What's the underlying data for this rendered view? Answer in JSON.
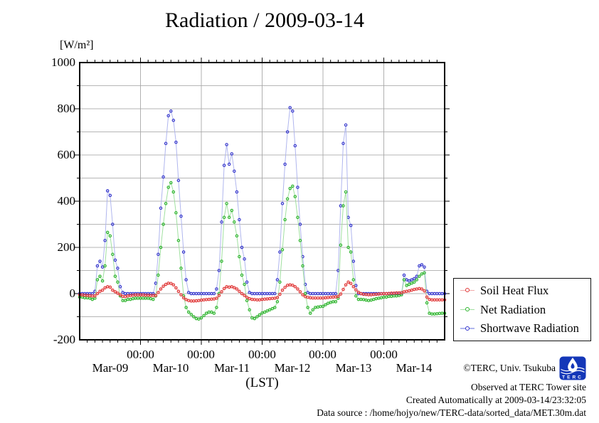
{
  "title": "Radiation / 2009-03-14",
  "y_axis": {
    "unit": "[W/m²]",
    "ticks": [
      "1000",
      "800",
      "600",
      "400",
      "200",
      "0",
      "-200"
    ]
  },
  "x_axis": {
    "time_tick_label": "00:00",
    "day_labels": [
      "Mar-09",
      "Mar-10",
      "Mar-11",
      "Mar-12",
      "Mar-13",
      "Mar-14"
    ],
    "label": "(LST)"
  },
  "legend": [
    "Soil Heat Flux",
    "Net Radiation",
    "Shortwave Radiation"
  ],
  "footer": {
    "copyright": "©TERC, Univ. Tsukuba",
    "observed": "Observed at TERC Tower site",
    "created": "Created Automatically at 2009-03-14/23:32:05",
    "source": "Data source : /home/hojyo/new/TERC-data/sorted_data/MET.30m.dat",
    "logo_text": "TERC"
  },
  "chart_data": {
    "type": "line",
    "title": "Radiation / 2009-03-14",
    "xlabel": "(LST)",
    "ylabel": "[W/m²]",
    "x_unit": "hours since 2009-03-09 00:00 LST, hourly estimates read from plot",
    "x_start_hour": 0,
    "x_step_hours": 1,
    "xlim": [
      0,
      144
    ],
    "ylim": [
      -200,
      1000
    ],
    "grid": {
      "horizontal_every": 100,
      "vertical_at_day_boundaries": true
    },
    "day_boundaries_hours": [
      24,
      48,
      72,
      96,
      120
    ],
    "x_minor_tick_hours": 3,
    "y_major_tick": 200,
    "y_minor_tick": 100,
    "legend_position": "right-bottom-outside",
    "series": [
      {
        "name": "Shortwave Radiation",
        "point_color": "#3535cc",
        "line_color": "#b0b6ee",
        "values": [
          0,
          0,
          0,
          0,
          0,
          0,
          10,
          120,
          140,
          115,
          230,
          445,
          425,
          300,
          145,
          110,
          30,
          5,
          0,
          0,
          0,
          0,
          0,
          0,
          0,
          0,
          0,
          0,
          0,
          0,
          45,
          170,
          370,
          505,
          650,
          770,
          790,
          750,
          655,
          490,
          335,
          180,
          60,
          5,
          0,
          0,
          0,
          0,
          0,
          0,
          0,
          0,
          0,
          0,
          20,
          100,
          310,
          555,
          645,
          560,
          605,
          530,
          440,
          320,
          200,
          150,
          50,
          5,
          0,
          0,
          0,
          0,
          0,
          0,
          0,
          0,
          0,
          0,
          60,
          180,
          390,
          560,
          700,
          805,
          790,
          640,
          460,
          300,
          160,
          40,
          5,
          0,
          0,
          0,
          0,
          0,
          0,
          0,
          0,
          0,
          0,
          0,
          100,
          380,
          650,
          730,
          330,
          295,
          140,
          35,
          0,
          0,
          0,
          0,
          0,
          0,
          0,
          0,
          0,
          0,
          0,
          0,
          0,
          0,
          0,
          0,
          0,
          0,
          80,
          60,
          55,
          60,
          65,
          75,
          120,
          125,
          115,
          10,
          0,
          0,
          0,
          0,
          0,
          0,
          0
        ]
      },
      {
        "name": "Net Radiation",
        "point_color": "#2db42d",
        "line_color": "#a0e0a0",
        "values": [
          -15,
          -15,
          -18,
          -18,
          -20,
          -25,
          -20,
          60,
          75,
          55,
          120,
          265,
          250,
          170,
          75,
          50,
          -10,
          -30,
          -30,
          -25,
          -25,
          -22,
          -20,
          -20,
          -20,
          -20,
          -20,
          -20,
          -22,
          -25,
          -10,
          80,
          200,
          300,
          390,
          460,
          480,
          440,
          350,
          230,
          110,
          -10,
          -60,
          -80,
          -90,
          -100,
          -108,
          -110,
          -105,
          -95,
          -85,
          -80,
          -80,
          -85,
          -60,
          0,
          140,
          330,
          390,
          330,
          360,
          310,
          250,
          160,
          80,
          40,
          -30,
          -70,
          -105,
          -108,
          -100,
          -92,
          -84,
          -80,
          -75,
          -70,
          -65,
          -60,
          -35,
          50,
          190,
          320,
          410,
          455,
          465,
          420,
          330,
          230,
          120,
          0,
          -60,
          -85,
          -70,
          -60,
          -58,
          -56,
          -55,
          -48,
          -42,
          -38,
          -35,
          -35,
          -20,
          210,
          380,
          440,
          200,
          180,
          60,
          -10,
          -25,
          -25,
          -26,
          -28,
          -30,
          -28,
          -25,
          -22,
          -20,
          -18,
          -15,
          -15,
          -12,
          -12,
          -10,
          -10,
          -8,
          -5,
          60,
          35,
          40,
          45,
          50,
          60,
          75,
          85,
          90,
          -40,
          -85,
          -88,
          -88,
          -87,
          -86,
          -85,
          -85
        ]
      },
      {
        "name": "Soil Heat Flux",
        "point_color": "#e03434",
        "line_color": "#f2aaaa",
        "values": [
          -5,
          -6,
          -7,
          -8,
          -9,
          -10,
          -10,
          0,
          10,
          15,
          25,
          30,
          28,
          15,
          8,
          2,
          -5,
          -12,
          -13,
          -10,
          -8,
          -7,
          -6,
          -6,
          -6,
          -6,
          -7,
          -7,
          -8,
          -8,
          -8,
          5,
          20,
          32,
          40,
          45,
          44,
          38,
          25,
          10,
          -5,
          -18,
          -26,
          -30,
          -32,
          -32,
          -31,
          -30,
          -28,
          -27,
          -26,
          -25,
          -24,
          -23,
          -20,
          -8,
          8,
          22,
          30,
          28,
          30,
          26,
          20,
          10,
          0,
          -8,
          -16,
          -22,
          -25,
          -26,
          -27,
          -27,
          -25,
          -24,
          -23,
          -22,
          -21,
          -20,
          -17,
          -3,
          15,
          27,
          36,
          38,
          36,
          30,
          20,
          8,
          -5,
          -13,
          -16,
          -18,
          -19,
          -19,
          -19,
          -19,
          -19,
          -18,
          -17,
          -16,
          -15,
          -14,
          -12,
          -2,
          18,
          38,
          50,
          44,
          30,
          16,
          6,
          0,
          -3,
          -4,
          -5,
          -5,
          -4,
          -3,
          -2,
          -1,
          0,
          0,
          1,
          2,
          2,
          3,
          3,
          4,
          8,
          10,
          12,
          15,
          18,
          20,
          22,
          20,
          12,
          -15,
          -25,
          -27,
          -27,
          -27,
          -27,
          -27,
          -27
        ]
      }
    ]
  }
}
